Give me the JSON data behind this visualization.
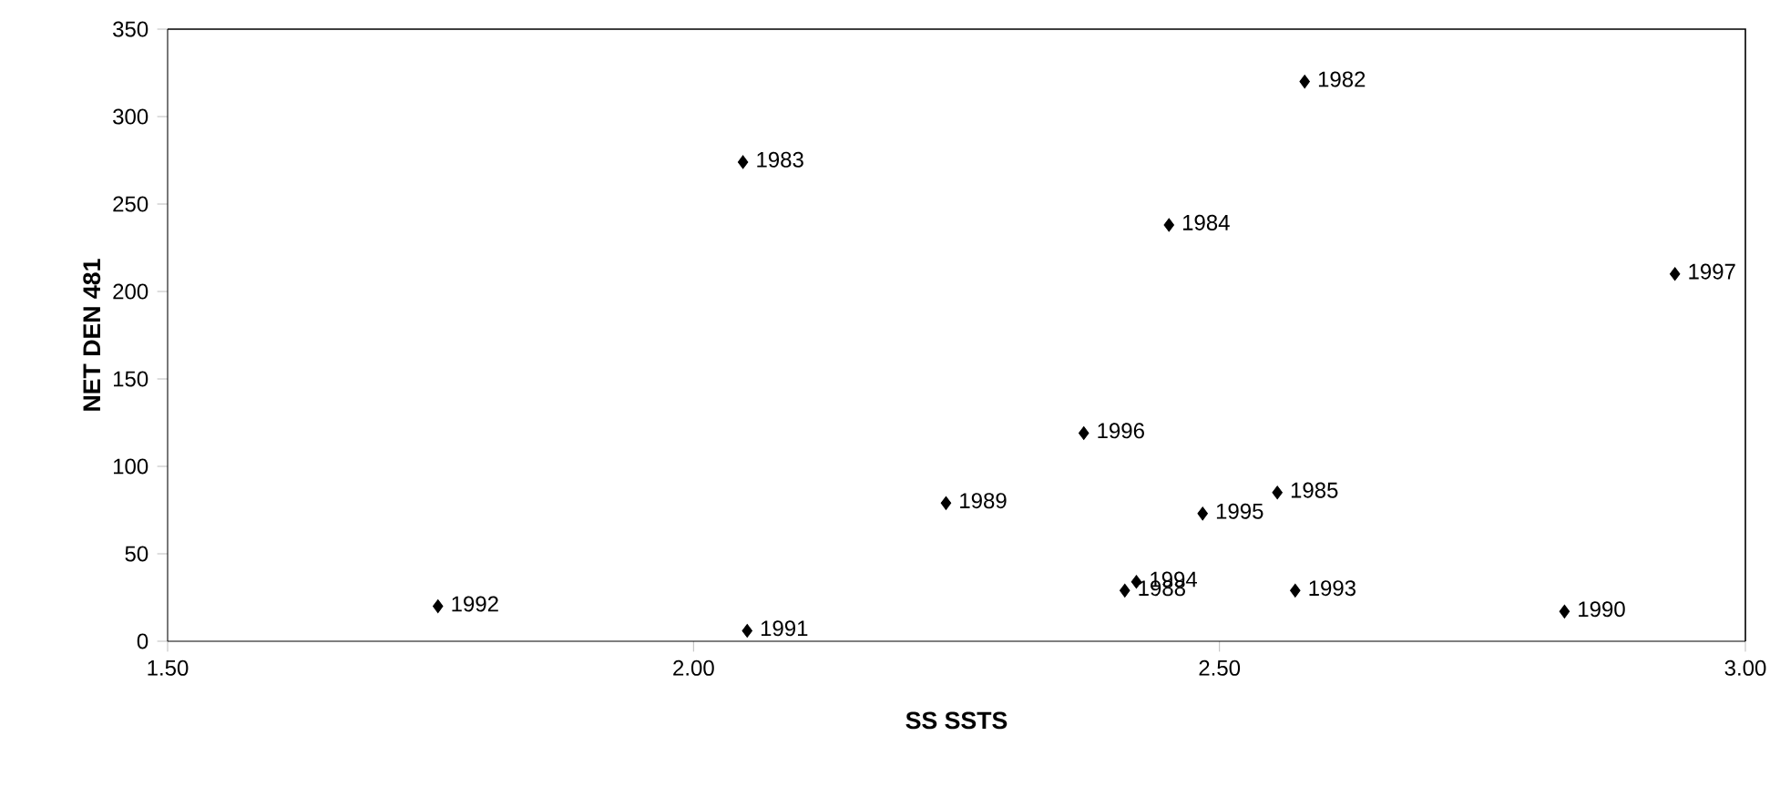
{
  "chart_data": {
    "type": "scatter",
    "xlabel": "SS SSTS",
    "ylabel": "NET DEN 481",
    "series": [
      {
        "color": "#000000",
        "x": [
          2.581,
          2.047,
          2.452,
          2.555,
          2.41,
          2.24,
          2.828,
          2.051,
          1.757,
          2.572,
          2.421,
          2.484,
          2.371,
          2.933
        ],
        "values": [
          320,
          274,
          238,
          85,
          29,
          79,
          17,
          6,
          20,
          29,
          34,
          73,
          119,
          210
        ]
      }
    ],
    "marker": "diamond",
    "grid": false,
    "xlim": [
      1.5,
      3.0
    ],
    "ylim": [
      0,
      350
    ],
    "xticks": [
      {
        "value": 1.5,
        "label": "1.50"
      },
      {
        "value": 2.0,
        "label": "2.00"
      },
      {
        "value": 2.5,
        "label": "2.50"
      },
      {
        "value": 3.0,
        "label": "3.00"
      }
    ],
    "yticks": [
      0,
      50,
      100,
      150,
      200,
      250,
      300,
      350
    ],
    "annotations": [
      {
        "text": "1982",
        "x": 2.581,
        "y": 320
      },
      {
        "text": "1983",
        "x": 2.047,
        "y": 274
      },
      {
        "text": "1984",
        "x": 2.452,
        "y": 238
      },
      {
        "text": "1985",
        "x": 2.555,
        "y": 85
      },
      {
        "text": "1988",
        "x": 2.41,
        "y": 29
      },
      {
        "text": "1989",
        "x": 2.24,
        "y": 79
      },
      {
        "text": "1990",
        "x": 2.828,
        "y": 17
      },
      {
        "text": "1991",
        "x": 2.051,
        "y": 6
      },
      {
        "text": "1992",
        "x": 1.757,
        "y": 20
      },
      {
        "text": "1993",
        "x": 2.572,
        "y": 29
      },
      {
        "text": "1994",
        "x": 2.421,
        "y": 34
      },
      {
        "text": "1995",
        "x": 2.484,
        "y": 73
      },
      {
        "text": "1996",
        "x": 2.371,
        "y": 119
      },
      {
        "text": "1997",
        "x": 2.933,
        "y": 210
      }
    ]
  }
}
